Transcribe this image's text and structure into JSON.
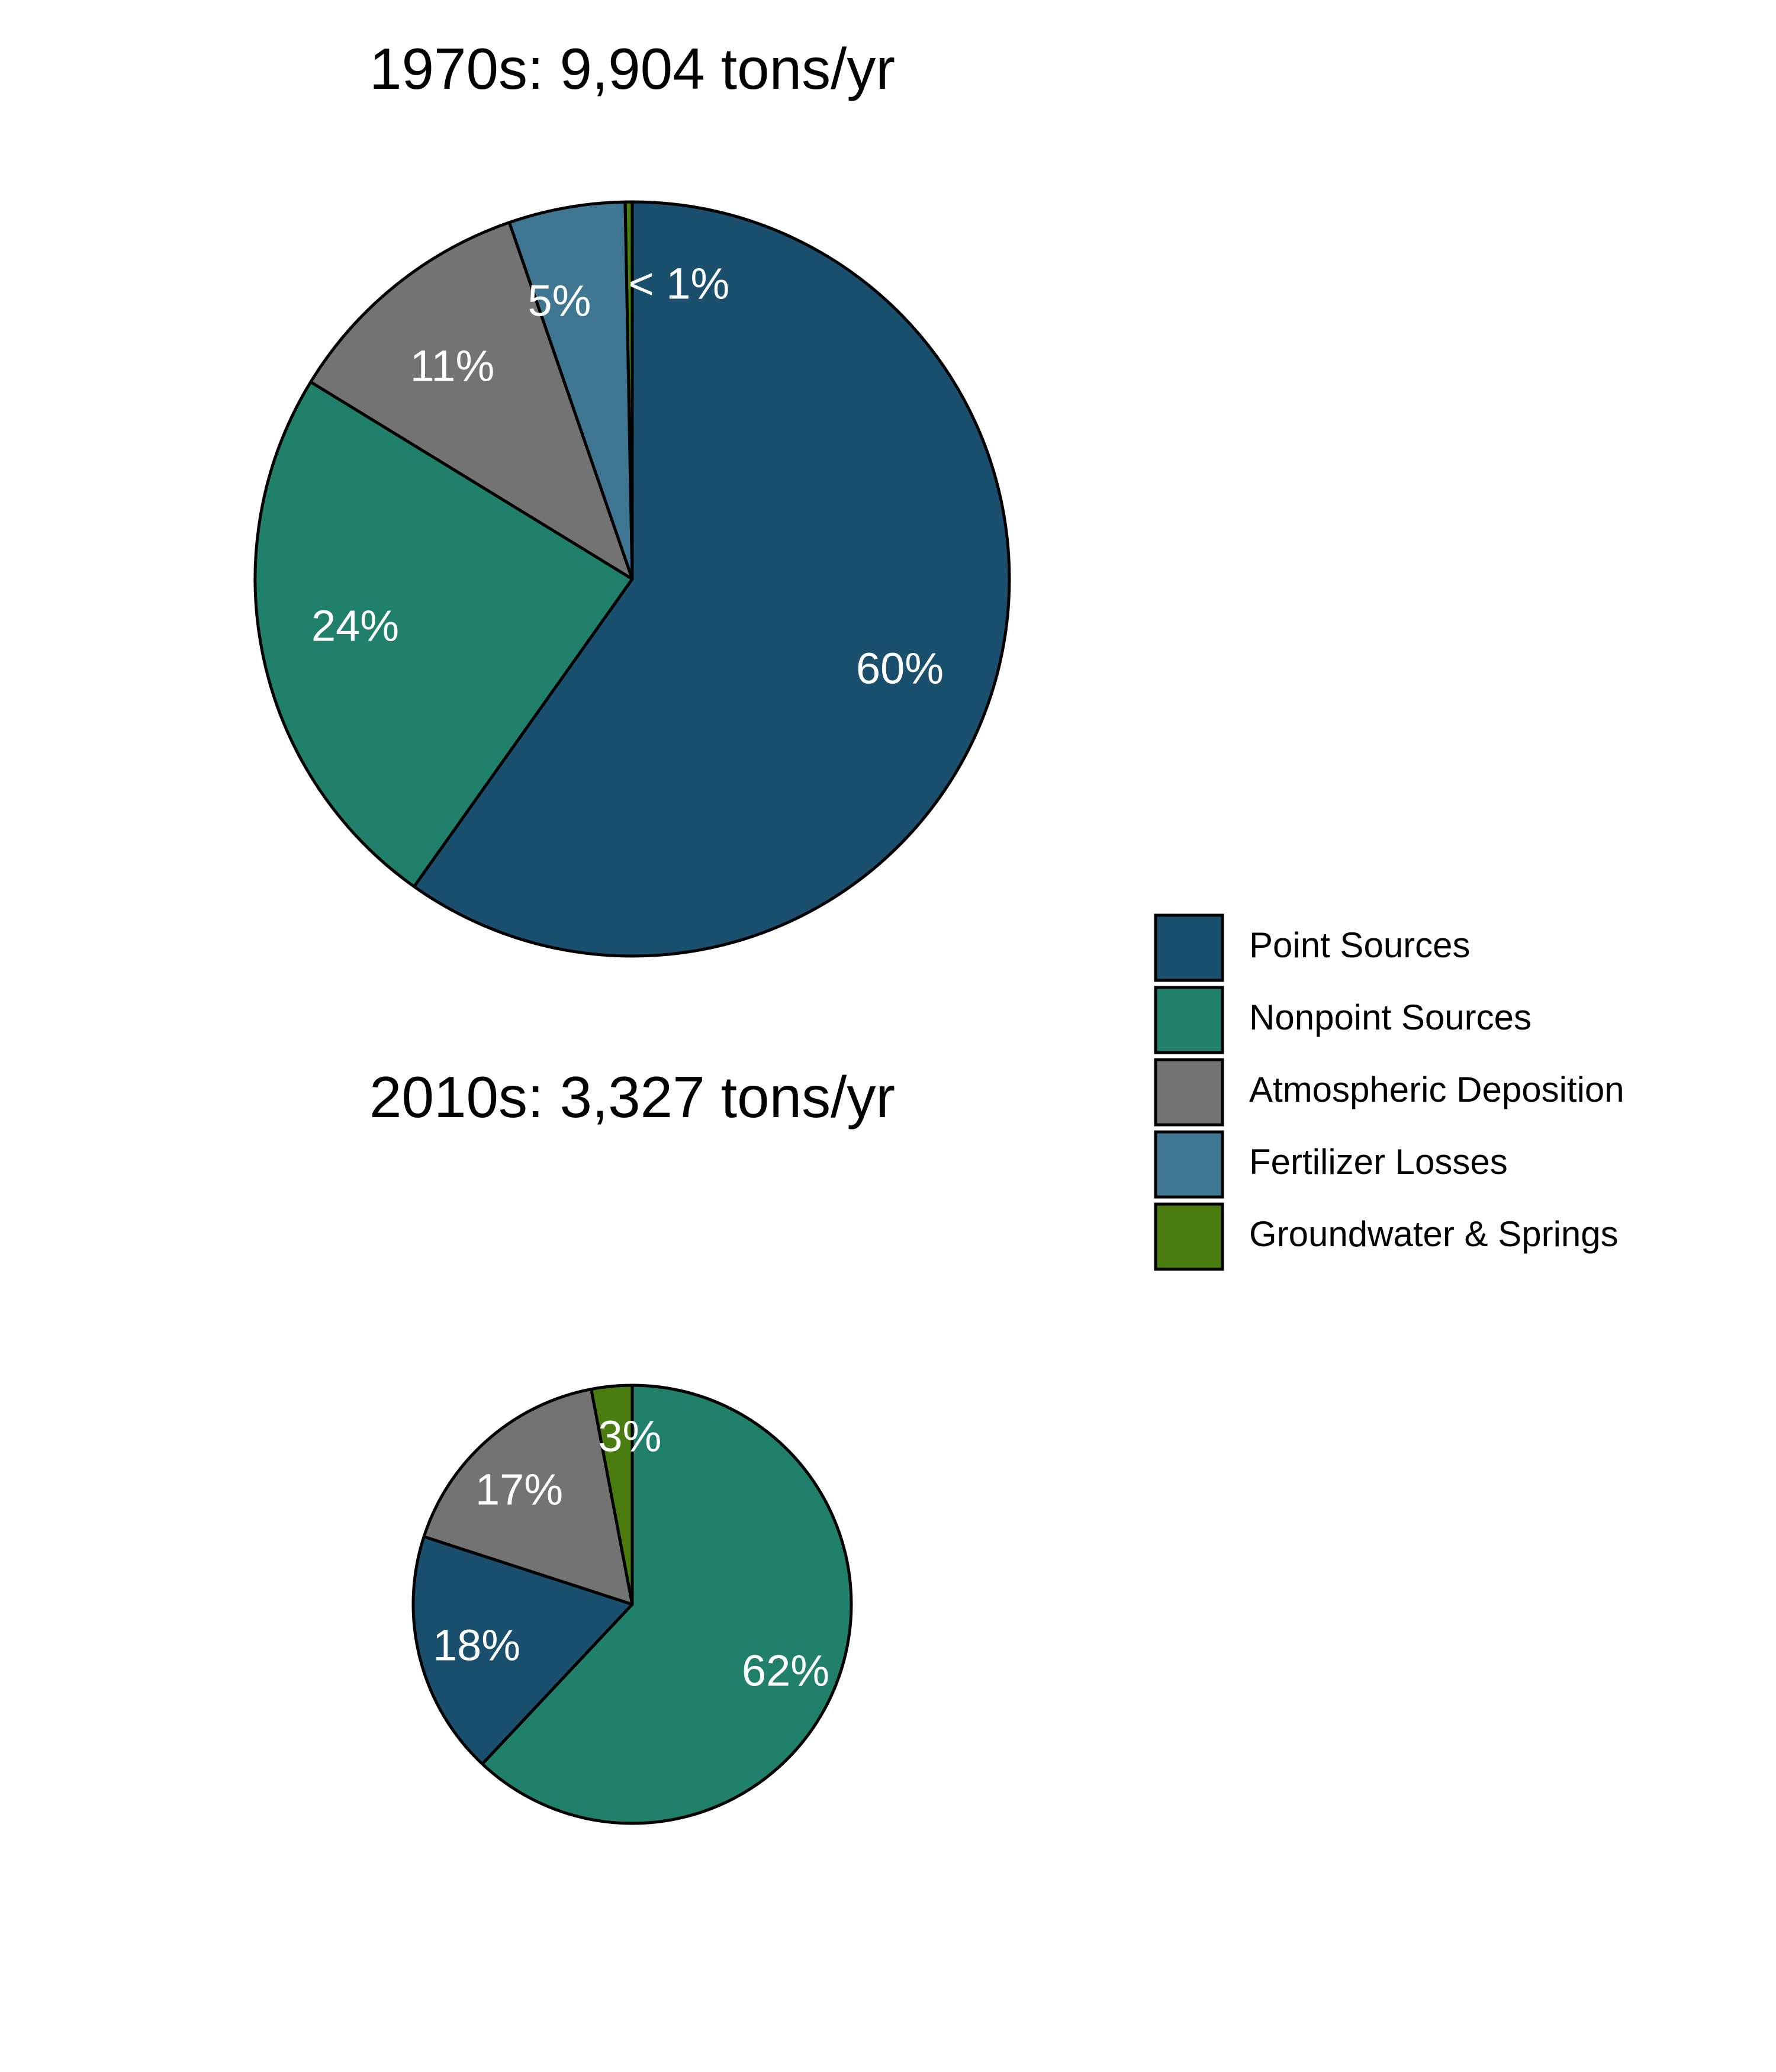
{
  "legend": {
    "position": "right",
    "items": [
      {
        "label": "Point Sources",
        "color": "#1a4f6e"
      },
      {
        "label": "Nonpoint Sources",
        "color": "#20806c"
      },
      {
        "label": "Atmospheric Deposition",
        "color": "#737373"
      },
      {
        "label": "Fertilizer Losses",
        "color": "#3f7793"
      },
      {
        "label": "Groundwater & Springs",
        "color": "#4b7c0f"
      }
    ]
  },
  "chart_data": [
    {
      "type": "pie",
      "title": "1970s: 9,904 tons/yr",
      "total_tons_per_yr": 9904,
      "slices": [
        {
          "category": "Point Sources",
          "value": 60,
          "label": "60%",
          "color": "#1a4f6e"
        },
        {
          "category": "Nonpoint Sources",
          "value": 24,
          "label": "24%",
          "color": "#20806c"
        },
        {
          "category": "Atmospheric Deposition",
          "value": 11,
          "label": "11%",
          "color": "#737373"
        },
        {
          "category": "Fertilizer Losses",
          "value": 5,
          "label": "5%",
          "color": "#3f7793"
        },
        {
          "category": "Groundwater & Springs",
          "value": 0.3,
          "label": "< 1%",
          "color": "#4b7c0f"
        }
      ]
    },
    {
      "type": "pie",
      "title": "2010s: 3,327 tons/yr",
      "total_tons_per_yr": 3327,
      "slices": [
        {
          "category": "Nonpoint Sources",
          "value": 62,
          "label": "62%",
          "color": "#20806c"
        },
        {
          "category": "Point Sources",
          "value": 18,
          "label": "18%",
          "color": "#1a4f6e"
        },
        {
          "category": "Atmospheric Deposition",
          "value": 17,
          "label": "17%",
          "color": "#737373"
        },
        {
          "category": "Groundwater & Springs",
          "value": 3,
          "label": "3%",
          "color": "#4b7c0f"
        }
      ]
    }
  ]
}
